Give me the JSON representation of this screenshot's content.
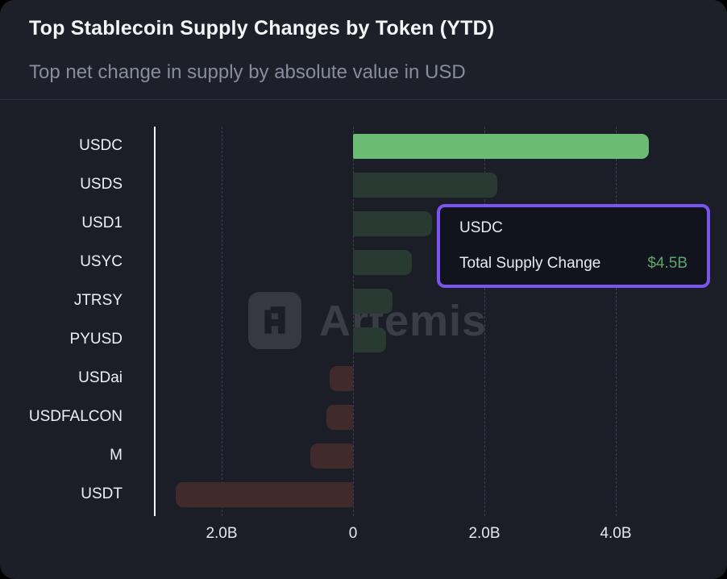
{
  "chart_data": {
    "type": "bar",
    "orientation": "horizontal",
    "title": "Top Stablecoin Supply Changes by Token (YTD)",
    "subtitle": "Top net change in supply by absolute value in USD",
    "categories": [
      "USDC",
      "USDS",
      "USD1",
      "USYC",
      "JTRSY",
      "PYUSD",
      "USDai",
      "USDFALCON",
      "M",
      "USDT"
    ],
    "values": [
      4.5,
      2.2,
      1.2,
      0.9,
      0.6,
      0.5,
      -0.35,
      -0.4,
      -0.65,
      -2.7
    ],
    "unit": "B USD",
    "xlabel": "",
    "ylabel": "",
    "xlim": [
      -3.0,
      5.4
    ],
    "x_ticks": [
      {
        "value": -2,
        "label": "2.0B"
      },
      {
        "value": 0,
        "label": "0"
      },
      {
        "value": 2,
        "label": "2.0B"
      },
      {
        "value": 4,
        "label": "4.0B"
      }
    ],
    "grid": "dashed-vertical",
    "legend": "none",
    "highlight_category": "USDC",
    "colors": {
      "highlight": "#6cbb75",
      "positive": "#283a31",
      "negative": "#402a2b"
    }
  },
  "tooltip": {
    "token": "USDC",
    "label": "Total Supply Change",
    "value": "$4.5B",
    "accent": "#7a55f0",
    "value_color": "#5ea46c"
  },
  "watermark": {
    "text": "Artemis"
  }
}
